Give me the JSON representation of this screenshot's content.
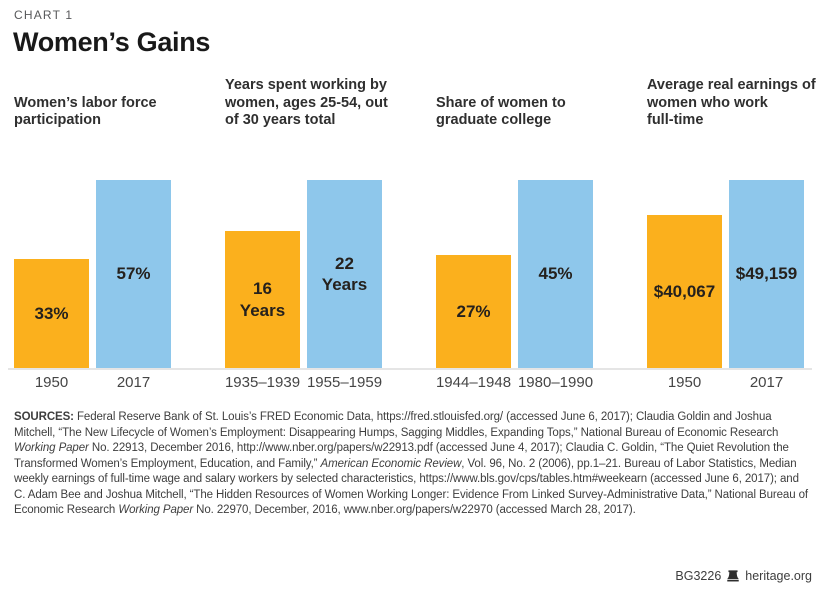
{
  "page": {
    "kicker": "CHART 1",
    "title": "Women’s Gains"
  },
  "chart_data": {
    "type": "bar",
    "note": "Four side-by-side paired bar panels; in each panel bars are scaled proportionally to the larger (second) value; first bar is orange, second bar is blue; no y-axis shown, values labeled inside bars",
    "colors": {
      "first": "#fbb01d",
      "second": "#8ec7eb",
      "baseline": "#e5e5e5"
    },
    "panels": [
      {
        "title": "Women’s labor force\nparticipation",
        "categories": [
          "1950",
          "2017"
        ],
        "values": [
          33,
          57
        ],
        "labels": [
          "33%",
          "57%"
        ],
        "unit": "percent"
      },
      {
        "title": "Years spent working by\nwomen, ages 25-54, out\nof 30 years total",
        "categories": [
          "1935–1939",
          "1955–1959"
        ],
        "values": [
          16,
          22
        ],
        "labels": [
          "16\nYears",
          "22\nYears"
        ],
        "unit": "years"
      },
      {
        "title": "Share of women to\ngraduate college",
        "categories": [
          "1944–1948",
          "1980–1990"
        ],
        "values": [
          27,
          45
        ],
        "labels": [
          "27%",
          "45%"
        ],
        "unit": "percent"
      },
      {
        "title": "Average real earnings of\nwomen who work\nfull-time",
        "categories": [
          "1950",
          "2017"
        ],
        "values": [
          40067,
          49159
        ],
        "labels": [
          "$40,067",
          "$49,159"
        ],
        "unit": "dollars"
      }
    ]
  },
  "sources": {
    "segments": [
      {
        "style": "bold",
        "text": "SOURCES: "
      },
      {
        "style": "normal",
        "text": "Federal Reserve Bank of St. Louis’s FRED Economic Data, https://fred.stlouisfed.org/ (accessed June 6, 2017); Claudia Goldin and Joshua Mitchell, “The New Lifecycle of Women’s Employment: Disappearing Humps, Sagging Middles, Expanding Tops,” National Bureau of Economic Research "
      },
      {
        "style": "italic",
        "text": "Working Paper"
      },
      {
        "style": "normal",
        "text": " No. 22913, December 2016, http://www.nber.org/papers/w22913.pdf (accessed June 4, 2017); Claudia C. Goldin, “The Quiet Revolution the Transformed Women’s Employment, Education, and Family,” "
      },
      {
        "style": "italic",
        "text": "American Economic Review"
      },
      {
        "style": "normal",
        "text": ", Vol. 96, No. 2 (2006), pp.1–21. Bureau of Labor Statistics, Median weekly earnings of full-time wage and salary workers by selected characteristics, https://www.bls.gov/cps/tables.htm#weekearn (accessed June 6, 2017); and C. Adam Bee and Joshua Mitchell, “The Hidden Resources of Women Working Longer: Evidence From Linked Survey-Administrative Data,” National Bureau of Economic Research "
      },
      {
        "style": "italic",
        "text": "Working Paper"
      },
      {
        "style": "normal",
        "text": " No. 22970, December, 2016, www.nber.org/papers/w22970 (accessed March 28, 2017)."
      }
    ]
  },
  "footer": {
    "id": "BG3226",
    "site": "heritage.org",
    "logo": "heritage-bell"
  }
}
